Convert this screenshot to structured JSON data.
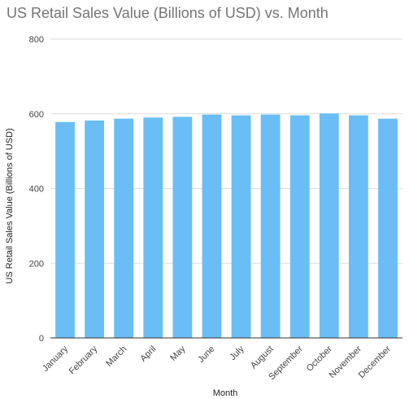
{
  "chart_data": {
    "type": "bar",
    "title": "US Retail Sales Value (Billions of USD) vs. Month",
    "xlabel": "Month",
    "ylabel": "US Retail Sales Value (Billions of USD)",
    "categories": [
      "January",
      "February",
      "March",
      "April",
      "May",
      "June",
      "July",
      "August",
      "September",
      "October",
      "November",
      "December"
    ],
    "values": [
      578,
      582,
      587,
      590,
      592,
      598,
      596,
      598,
      596,
      601,
      596,
      587
    ],
    "ylim": [
      0,
      800
    ],
    "yticks": [
      0,
      200,
      400,
      600,
      800
    ],
    "grid": true,
    "legend": "none",
    "bar_color": "#6ABEF5",
    "grid_color": "#DDDDDD",
    "baseline_color": "#333333"
  }
}
